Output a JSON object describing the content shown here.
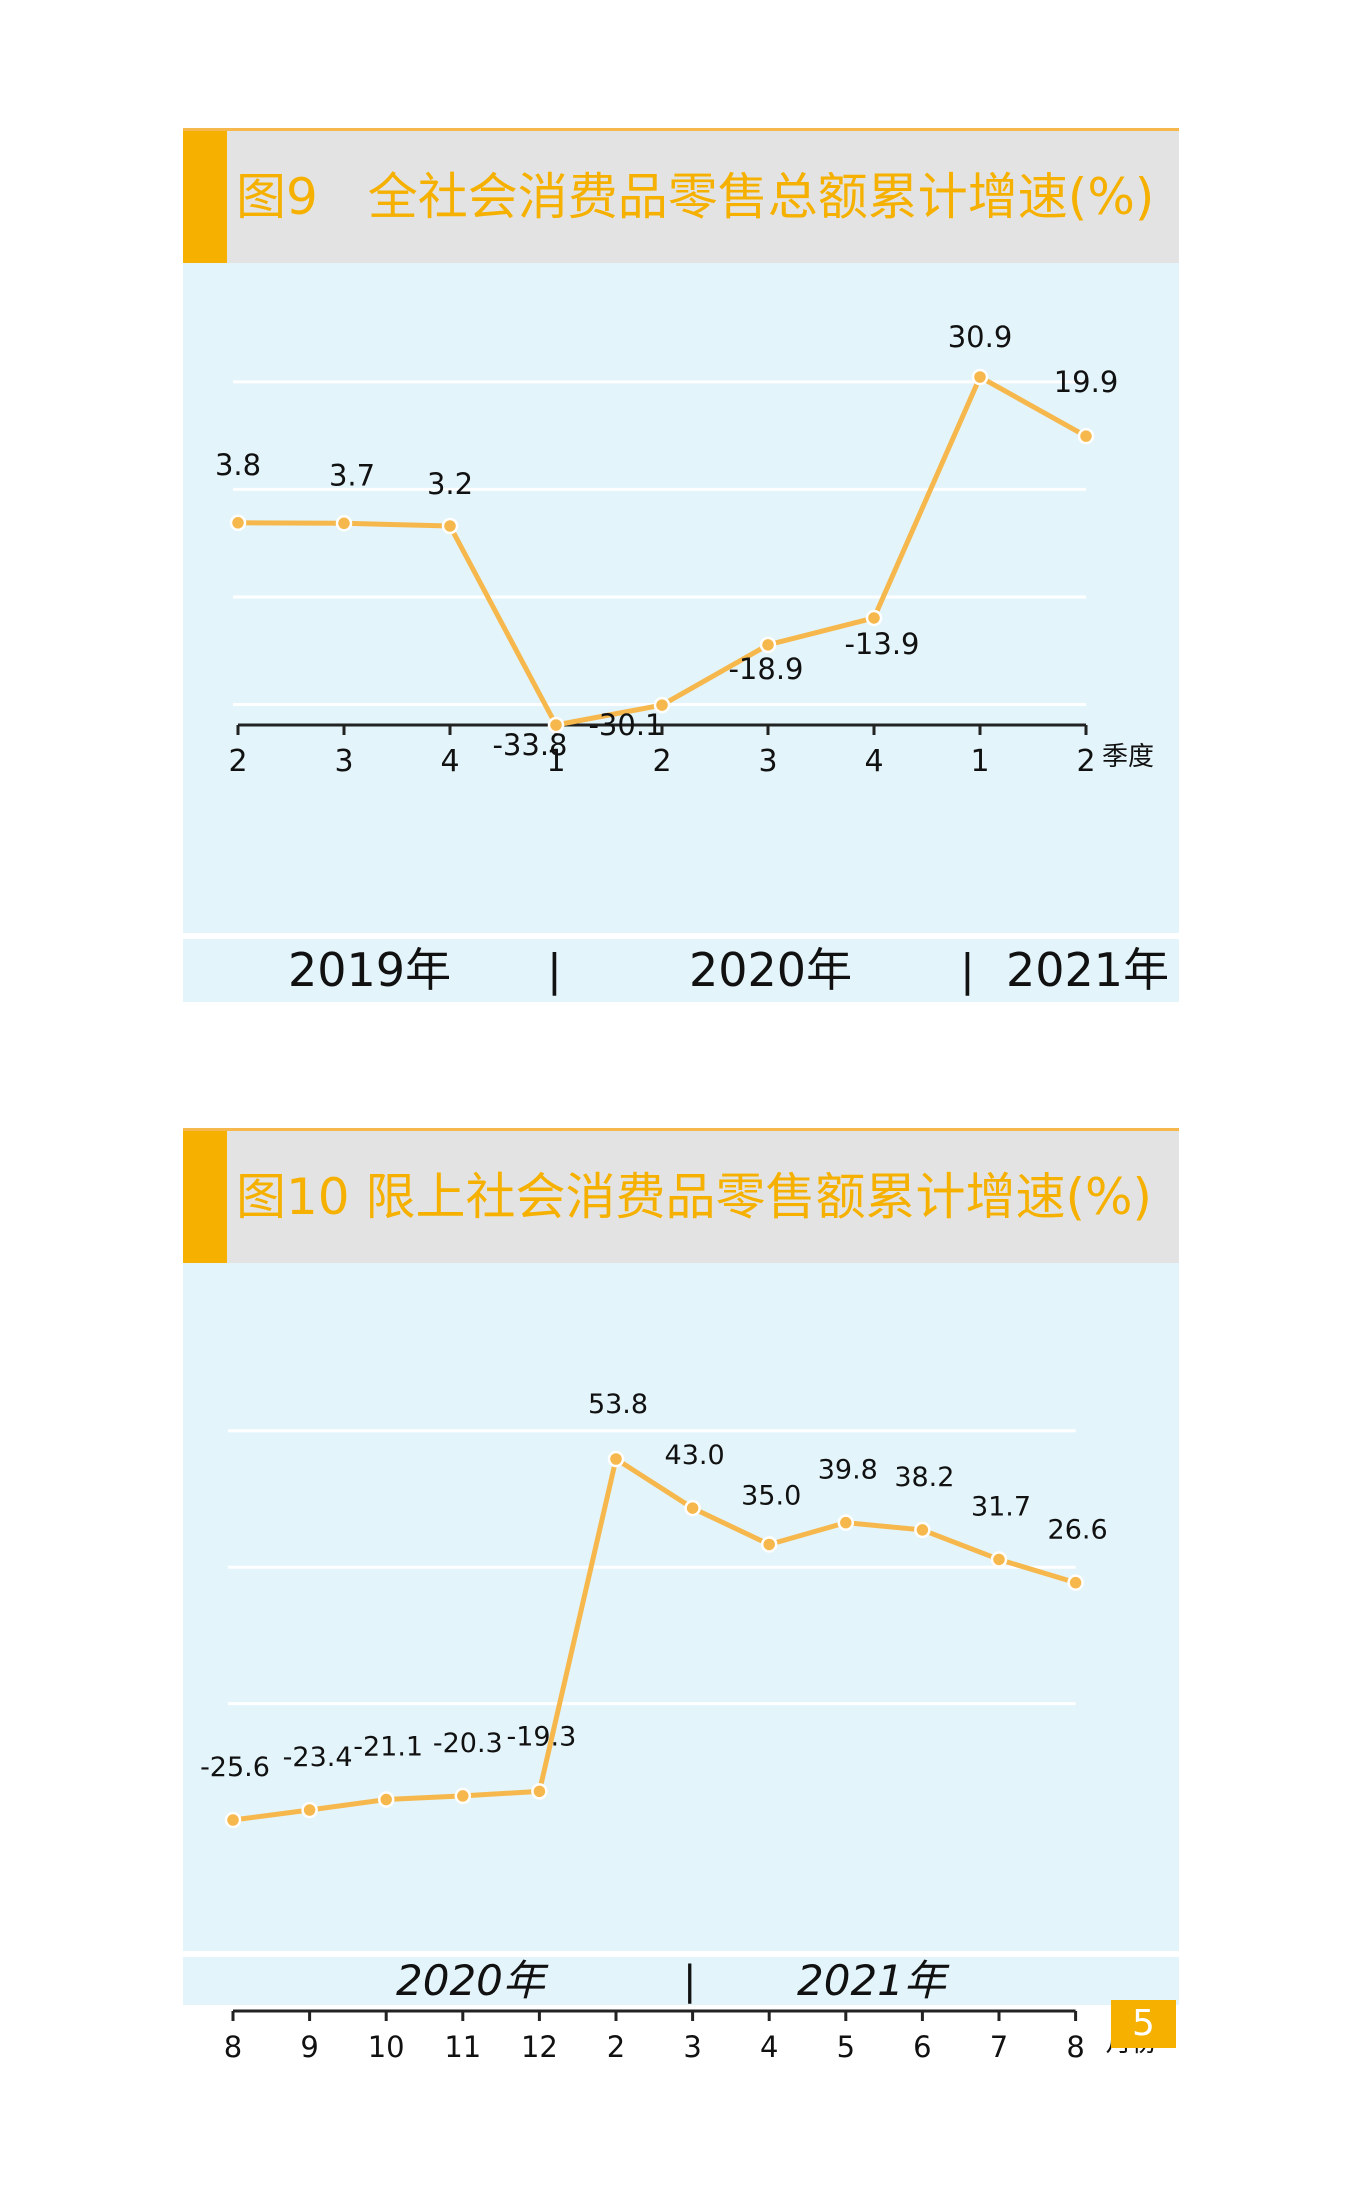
{
  "chart_data": [
    {
      "type": "line",
      "title": "图9　全社会消费品零售总额累计增速(%)",
      "x_unit": "季度",
      "categories": [
        "2",
        "3",
        "4",
        "1",
        "2",
        "3",
        "4",
        "1",
        "2"
      ],
      "values": [
        3.8,
        3.7,
        3.2,
        -33.8,
        -30.1,
        -18.9,
        -13.9,
        30.9,
        19.9
      ],
      "value_labels": [
        "3.8",
        "3.7",
        "3.2",
        "-33.8",
        "-30.1",
        "-18.9",
        "-13.9",
        "30.9",
        "19.9"
      ],
      "ylim": [
        -40,
        40
      ],
      "grid": true,
      "year_labels": [
        "2019年",
        "2020年",
        "2021年"
      ],
      "line_color": "#f6b84c"
    },
    {
      "type": "line",
      "title": "图10 限上社会消费品零售额累计增速(%)",
      "x_unit": "月份",
      "categories": [
        "8",
        "9",
        "10",
        "11",
        "12",
        "2",
        "3",
        "4",
        "5",
        "6",
        "7",
        "8"
      ],
      "values": [
        -25.6,
        -23.4,
        -21.1,
        -20.3,
        -19.3,
        53.8,
        43.0,
        35.0,
        39.8,
        38.2,
        31.7,
        26.6
      ],
      "value_labels": [
        "-25.6",
        "-23.4",
        "-21.1",
        "-20.3",
        "-19.3",
        "53.8",
        "43.0",
        "35.0",
        "39.8",
        "38.2",
        "31.7",
        "26.6"
      ],
      "ylim": [
        -80,
        80
      ],
      "grid": true,
      "year_labels": [
        "2020年",
        "2021年"
      ],
      "line_color": "#f6b84c"
    }
  ],
  "page_number": "5",
  "colors": {
    "accent": "#f5b000",
    "title_bg": "#e3e3e3",
    "plot_bg": "#e3f4fa",
    "line": "#f6b84c"
  }
}
